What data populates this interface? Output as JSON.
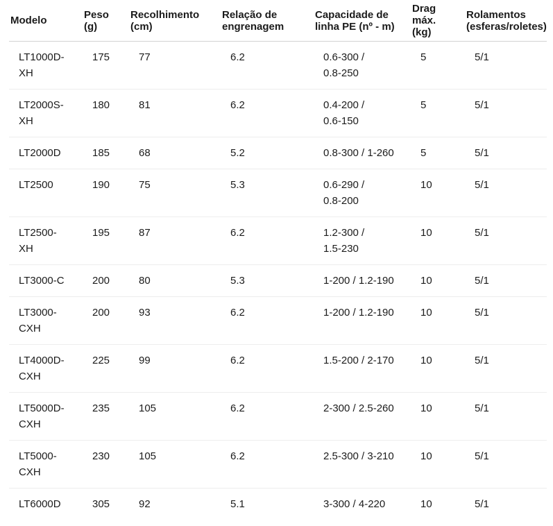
{
  "colors": {
    "background": "#ffffff",
    "text": "#1b1b1b",
    "header_border": "#d2d2d2",
    "row_border": "#ededed"
  },
  "table": {
    "headers": [
      "Modelo",
      "Peso\n(g)",
      "Recolhimento\n(cm)",
      "Relação de\nengrenagem",
      "Capacidade de\nlinha PE (nº - m)",
      "Drag\nmáx.\n(kg)",
      "Rolamentos\n(esferas/roletes)"
    ],
    "rows": [
      {
        "model": "LT1000D-\nXH",
        "peso": "175",
        "recolhimento": "77",
        "relacao": "6.2",
        "capacidade": "0.6-300 /\n0.8-250",
        "drag": "5",
        "rolamentos": "5/1"
      },
      {
        "model": "LT2000S-\nXH",
        "peso": "180",
        "recolhimento": "81",
        "relacao": "6.2",
        "capacidade": "0.4-200 /\n0.6-150",
        "drag": "5",
        "rolamentos": "5/1"
      },
      {
        "model": "LT2000D",
        "peso": "185",
        "recolhimento": "68",
        "relacao": "5.2",
        "capacidade": "0.8-300 / 1-260",
        "drag": "5",
        "rolamentos": "5/1"
      },
      {
        "model": "LT2500",
        "peso": "190",
        "recolhimento": "75",
        "relacao": "5.3",
        "capacidade": "0.6-290 /\n0.8-200",
        "drag": "10",
        "rolamentos": "5/1"
      },
      {
        "model": "LT2500-\nXH",
        "peso": "195",
        "recolhimento": "87",
        "relacao": "6.2",
        "capacidade": "1.2-300 /\n1.5-230",
        "drag": "10",
        "rolamentos": "5/1"
      },
      {
        "model": "LT3000-C",
        "peso": "200",
        "recolhimento": "80",
        "relacao": "5.3",
        "capacidade": "1-200 / 1.2-190",
        "drag": "10",
        "rolamentos": "5/1"
      },
      {
        "model": "LT3000-\nCXH",
        "peso": "200",
        "recolhimento": "93",
        "relacao": "6.2",
        "capacidade": "1-200 / 1.2-190",
        "drag": "10",
        "rolamentos": "5/1"
      },
      {
        "model": "LT4000D-\nCXH",
        "peso": "225",
        "recolhimento": "99",
        "relacao": "6.2",
        "capacidade": "1.5-200 / 2-170",
        "drag": "10",
        "rolamentos": "5/1"
      },
      {
        "model": "LT5000D-\nCXH",
        "peso": "235",
        "recolhimento": "105",
        "relacao": "6.2",
        "capacidade": "2-300 / 2.5-260",
        "drag": "10",
        "rolamentos": "5/1"
      },
      {
        "model": "LT5000-\nCXH",
        "peso": "230",
        "recolhimento": "105",
        "relacao": "6.2",
        "capacidade": "2.5-300 / 3-210",
        "drag": "10",
        "rolamentos": "5/1"
      },
      {
        "model": "LT6000D",
        "peso": "305",
        "recolhimento": "92",
        "relacao": "5.1",
        "capacidade": "3-300 / 4-220",
        "drag": "10",
        "rolamentos": "5/1"
      }
    ]
  },
  "chart_data": {
    "type": "table",
    "title": "",
    "columns": [
      "Modelo",
      "Peso (g)",
      "Recolhimento (cm)",
      "Relação de engrenagem",
      "Capacidade de linha PE (nº - m)",
      "Drag máx. (kg)",
      "Rolamentos (esferas/roletes)"
    ],
    "rows": [
      [
        "LT1000D-XH",
        "175",
        "77",
        "6.2",
        "0.6-300 / 0.8-250",
        "5",
        "5/1"
      ],
      [
        "LT2000S-XH",
        "180",
        "81",
        "6.2",
        "0.4-200 / 0.6-150",
        "5",
        "5/1"
      ],
      [
        "LT2000D",
        "185",
        "68",
        "5.2",
        "0.8-300 / 1-260",
        "5",
        "5/1"
      ],
      [
        "LT2500",
        "190",
        "75",
        "5.3",
        "0.6-290 / 0.8-200",
        "10",
        "5/1"
      ],
      [
        "LT2500-XH",
        "195",
        "87",
        "6.2",
        "1.2-300 / 1.5-230",
        "10",
        "5/1"
      ],
      [
        "LT3000-C",
        "200",
        "80",
        "5.3",
        "1-200 / 1.2-190",
        "10",
        "5/1"
      ],
      [
        "LT3000-CXH",
        "200",
        "93",
        "6.2",
        "1-200 / 1.2-190",
        "10",
        "5/1"
      ],
      [
        "LT4000D-CXH",
        "225",
        "99",
        "6.2",
        "1.5-200 / 2-170",
        "10",
        "5/1"
      ],
      [
        "LT5000D-CXH",
        "235",
        "105",
        "6.2",
        "2-300 / 2.5-260",
        "10",
        "5/1"
      ],
      [
        "LT5000-CXH",
        "230",
        "105",
        "6.2",
        "2.5-300 / 3-210",
        "10",
        "5/1"
      ],
      [
        "LT6000D",
        "305",
        "92",
        "5.1",
        "3-300 / 4-220",
        "10",
        "5/1"
      ]
    ]
  }
}
